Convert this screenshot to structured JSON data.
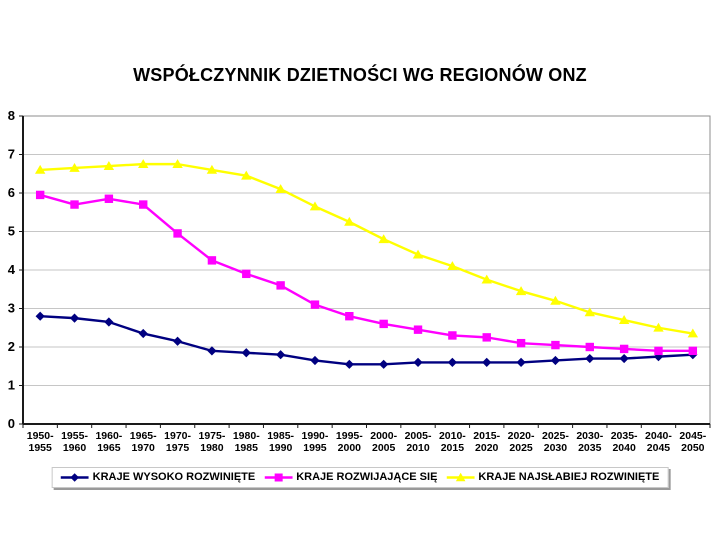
{
  "chart_data": {
    "type": "line",
    "title": "WSPÓŁCZYNNIK DZIETNOŚCI WG REGIONÓW ONZ",
    "categories": [
      "1950-1955",
      "1955-1960",
      "1960-1965",
      "1965-1970",
      "1970-1975",
      "1975-1980",
      "1980-1985",
      "1985-1990",
      "1990-1995",
      "1995-2000",
      "2000-2005",
      "2005-2010",
      "2010-2015",
      "2015-2020",
      "2020-2025",
      "2025-2030",
      "2030-2035",
      "2035-2040",
      "2040-2045",
      "2045-2050"
    ],
    "series": [
      {
        "name": "KRAJE WYSOKO ROZWINIĘTE",
        "color": "#000080",
        "marker": "diamond",
        "values": [
          2.8,
          2.75,
          2.65,
          2.35,
          2.15,
          1.9,
          1.85,
          1.8,
          1.65,
          1.55,
          1.55,
          1.6,
          1.6,
          1.6,
          1.6,
          1.65,
          1.7,
          1.7,
          1.75,
          1.8
        ]
      },
      {
        "name": "KRAJE ROZWIJAJĄCE SIĘ",
        "color": "#FF00FF",
        "marker": "square",
        "values": [
          5.95,
          5.7,
          5.85,
          5.7,
          4.95,
          4.25,
          3.9,
          3.6,
          3.1,
          2.8,
          2.6,
          2.45,
          2.3,
          2.25,
          2.1,
          2.05,
          2.0,
          1.95,
          1.9,
          1.9
        ]
      },
      {
        "name": "KRAJE NAJSŁABIEJ ROZWINIĘTE",
        "color": "#FFFF00",
        "marker": "triangle",
        "values": [
          6.6,
          6.65,
          6.7,
          6.75,
          6.75,
          6.6,
          6.45,
          6.1,
          5.65,
          5.25,
          4.8,
          4.4,
          4.1,
          3.75,
          3.45,
          3.2,
          2.9,
          2.7,
          2.5,
          2.35
        ]
      }
    ],
    "ylim": [
      0,
      8
    ],
    "yticks": [
      0,
      1,
      2,
      3,
      4,
      5,
      6,
      7,
      8
    ],
    "grid": "horizontal",
    "legend_position": "bottom",
    "colors": {
      "gridline": "#c6c6c6",
      "plot_border": "#8c8c8c",
      "axis": "#1a1a1a",
      "text": "#000000",
      "background": "#ffffff"
    }
  }
}
